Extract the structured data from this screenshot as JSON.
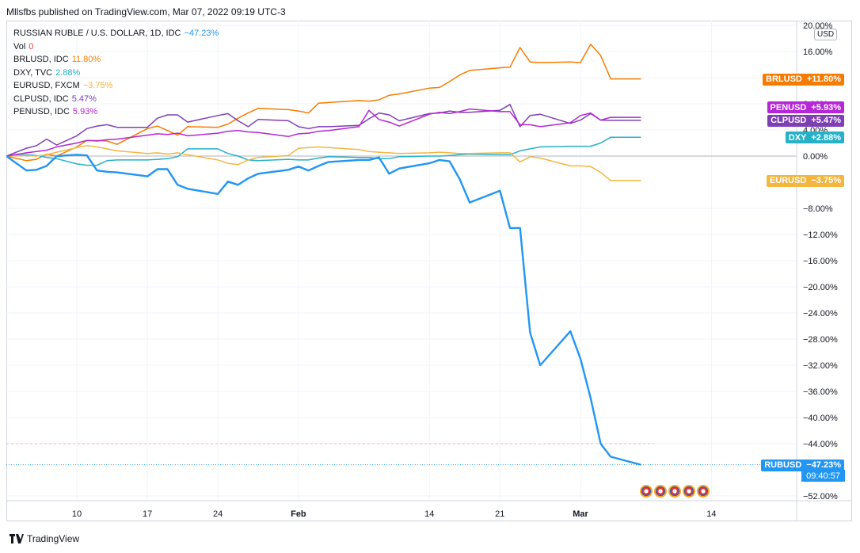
{
  "header": {
    "published": "Mllsfbs published on TradingView.com, Mar 07, 2022 09:19 UTC-3"
  },
  "footer": {
    "brand": "TradingView"
  },
  "legend": [
    {
      "label": "RUSSIAN RUBLE / U.S. DOLLAR, 1D, IDC",
      "value": "−47.23%",
      "color": "#2196f3"
    },
    {
      "label": "Vol",
      "value": "0",
      "color": "#f23645"
    },
    {
      "label": "BRLUSD, IDC",
      "value": "11.80%",
      "color": "#f57c00"
    },
    {
      "label": "DXY, TVC",
      "value": "2.88%",
      "color": "#26b1c9"
    },
    {
      "label": "EURUSD, FXCM",
      "value": "−3.75%",
      "color": "#f4b63f"
    },
    {
      "label": "CLPUSD, IDC",
      "value": "5.47%",
      "color": "#7e3fb5"
    },
    {
      "label": "PENUSD, IDC",
      "value": "5.93%",
      "color": "#b526d6"
    }
  ],
  "axis_badge": "USD",
  "price_tags": [
    {
      "name": "BRLUSD",
      "value": "+11.80%",
      "color": "#f57c00",
      "y": 11.8
    },
    {
      "name": "PENUSD",
      "value": "+5.93%",
      "color": "#b526d6",
      "y": 7.5
    },
    {
      "name": "CLPUSD",
      "value": "+5.47%",
      "color": "#7e3fb5",
      "y": 5.5
    },
    {
      "name": "DXY",
      "value": "+2.88%",
      "color": "#26b1c9",
      "y": 2.88
    },
    {
      "name": "EURUSD",
      "value": "−3.75%",
      "color": "#f4b63f",
      "y": -3.75
    },
    {
      "name": "RUBUSD",
      "value": "−47.23%",
      "color": "#2196f3",
      "y": -47.23
    }
  ],
  "rub_time": "09:40:57",
  "chart_data": {
    "type": "line",
    "ylim": [
      -54,
      20
    ],
    "yticks": [
      "20.00%",
      "16.00%",
      "12.00%",
      "8.00%",
      "4.00%",
      "0.00%",
      "−8.00%",
      "−12.00%",
      "−16.00%",
      "−20.00%",
      "−24.00%",
      "−28.00%",
      "−32.00%",
      "−36.00%",
      "−40.00%",
      "−44.00%",
      "−52.00%"
    ],
    "ytick_values": [
      20,
      16,
      12,
      8,
      4,
      0,
      -8,
      -12,
      -16,
      -20,
      -24,
      -28,
      -32,
      -36,
      -40,
      -44,
      -52
    ],
    "xticks": [
      {
        "label": "10",
        "date": "2022-01-10",
        "bold": false
      },
      {
        "label": "17",
        "date": "2022-01-17",
        "bold": false
      },
      {
        "label": "24",
        "date": "2022-01-24",
        "bold": false
      },
      {
        "label": "Feb",
        "date": "2022-02-01",
        "bold": true
      },
      {
        "label": "14",
        "date": "2022-02-14",
        "bold": false
      },
      {
        "label": "21",
        "date": "2022-02-21",
        "bold": false
      },
      {
        "label": "Mar",
        "date": "2022-03-01",
        "bold": true
      },
      {
        "label": "14",
        "date": "2022-03-14",
        "bold": false
      }
    ],
    "x_range": [
      "2022-01-03",
      "2022-03-23"
    ],
    "x": [
      "2022-01-03",
      "2022-01-05",
      "2022-01-06",
      "2022-01-07",
      "2022-01-08",
      "2022-01-10",
      "2022-01-11",
      "2022-01-12",
      "2022-01-13",
      "2022-01-14",
      "2022-01-17",
      "2022-01-18",
      "2022-01-19",
      "2022-01-20",
      "2022-01-21",
      "2022-01-24",
      "2022-01-25",
      "2022-01-26",
      "2022-01-27",
      "2022-01-28",
      "2022-01-31",
      "2022-02-01",
      "2022-02-02",
      "2022-02-03",
      "2022-02-04",
      "2022-02-07",
      "2022-02-08",
      "2022-02-09",
      "2022-02-10",
      "2022-02-11",
      "2022-02-14",
      "2022-02-15",
      "2022-02-16",
      "2022-02-17",
      "2022-02-18",
      "2022-02-21",
      "2022-02-22",
      "2022-02-23",
      "2022-02-24",
      "2022-02-25",
      "2022-02-28",
      "2022-03-01",
      "2022-03-02",
      "2022-03-03",
      "2022-03-04",
      "2022-03-07"
    ],
    "series": [
      {
        "name": "RUSSIAN RUBLE / U.S. DOLLAR",
        "color": "#2196f3",
        "width": 2.4,
        "values": [
          0,
          -2.2,
          -2.1,
          -1.5,
          0,
          0.2,
          0.1,
          -2.2,
          -2.4,
          -2.5,
          -3.1,
          -2,
          -2,
          -4.4,
          -5,
          -5.8,
          -3.9,
          -4.4,
          -3.4,
          -2.7,
          -2.1,
          -1.6,
          -2.2,
          -1.5,
          -0.9,
          -0.6,
          -0.6,
          -0.2,
          -2.7,
          -1.9,
          -1.1,
          -0.6,
          -0.8,
          -3.5,
          -7.1,
          -5.3,
          -11,
          -11,
          -27,
          -32,
          -26.8,
          -31,
          -37,
          -44,
          -46,
          -47.23
        ]
      },
      {
        "name": "BRLUSD",
        "color": "#f57c00",
        "width": 1.5,
        "values": [
          0,
          -0.7,
          -0.5,
          0.3,
          0,
          1.4,
          2.4,
          2.4,
          2.3,
          1.8,
          4.2,
          4.6,
          3.9,
          3.2,
          4.5,
          4.4,
          4.9,
          5.8,
          6.6,
          7.3,
          7.1,
          6.9,
          6.6,
          8.1,
          8.2,
          8.5,
          8.4,
          8.6,
          9.3,
          9.5,
          10.4,
          10.5,
          11.4,
          12.4,
          13.1,
          13.5,
          13.6,
          16.6,
          14.4,
          14.3,
          14.4,
          14.3,
          17.1,
          15.4,
          11.8,
          11.8
        ]
      },
      {
        "name": "DXY",
        "color": "#26b1c9",
        "width": 1.5,
        "values": [
          0,
          0.2,
          0.1,
          -0.2,
          -0.4,
          -1.2,
          -1.4,
          -1.4,
          -0.7,
          -0.6,
          -0.6,
          -0.5,
          -0.4,
          -0.1,
          1.1,
          1.1,
          0.4,
          0,
          -0.6,
          -0.7,
          -0.5,
          -0.6,
          -0.6,
          -0.3,
          -0.1,
          -0.2,
          -0.2,
          -0.4,
          -0.4,
          -0.1,
          0,
          0,
          0.1,
          0.2,
          0.3,
          0.2,
          0.2,
          0.8,
          1.1,
          1.4,
          1.5,
          1.5,
          1.5,
          2.0,
          2.88,
          2.88
        ]
      },
      {
        "name": "EURUSD",
        "color": "#f4b63f",
        "width": 1.5,
        "values": [
          0,
          0.1,
          0,
          0.2,
          0.6,
          1.3,
          1.6,
          1.4,
          1.1,
          0.8,
          0.4,
          0.5,
          0.3,
          0.5,
          0.2,
          -0.6,
          -1.1,
          -1.3,
          -0.6,
          -0.2,
          0.1,
          1.2,
          1.3,
          1.4,
          1.3,
          1.0,
          0.7,
          0.6,
          0.5,
          0.4,
          0.5,
          0.6,
          0.5,
          0.4,
          0.4,
          0.5,
          0.5,
          -0.9,
          -0.1,
          -0.3,
          -1.5,
          -1.5,
          -1.6,
          -2.5,
          -3.75,
          -3.75
        ]
      },
      {
        "name": "CLPUSD",
        "color": "#7e3fb5",
        "width": 1.5,
        "values": [
          0,
          1.2,
          1.6,
          2.6,
          1.7,
          3.1,
          4.2,
          4.6,
          4.8,
          4.4,
          4.4,
          5.8,
          6.3,
          6.3,
          5.2,
          6.2,
          6.5,
          5.4,
          4.5,
          5.6,
          5.4,
          4.5,
          4.2,
          4.5,
          4.5,
          4.7,
          5.7,
          6.6,
          6.3,
          5.4,
          6.5,
          6.6,
          6.9,
          6.7,
          6.7,
          7.0,
          7.9,
          4.5,
          6.2,
          6.4,
          5.0,
          5.5,
          6.5,
          5.5,
          5.47,
          5.47
        ]
      },
      {
        "name": "PENUSD",
        "color": "#b526d6",
        "width": 1.5,
        "values": [
          0,
          0.5,
          0.7,
          0.9,
          1.4,
          2,
          2.4,
          2.3,
          2.5,
          2.6,
          3.2,
          3.4,
          3.3,
          3.5,
          3.1,
          3.5,
          3.8,
          3.9,
          3.7,
          3.6,
          3.0,
          3.4,
          3.5,
          3.8,
          3.9,
          4.5,
          7.0,
          5.6,
          5.2,
          4.6,
          6.4,
          6.7,
          6.5,
          6.8,
          7.2,
          6.8,
          6.8,
          4.8,
          4.8,
          4.5,
          5.1,
          6.2,
          6.6,
          5.5,
          5.93,
          5.93
        ]
      }
    ]
  }
}
